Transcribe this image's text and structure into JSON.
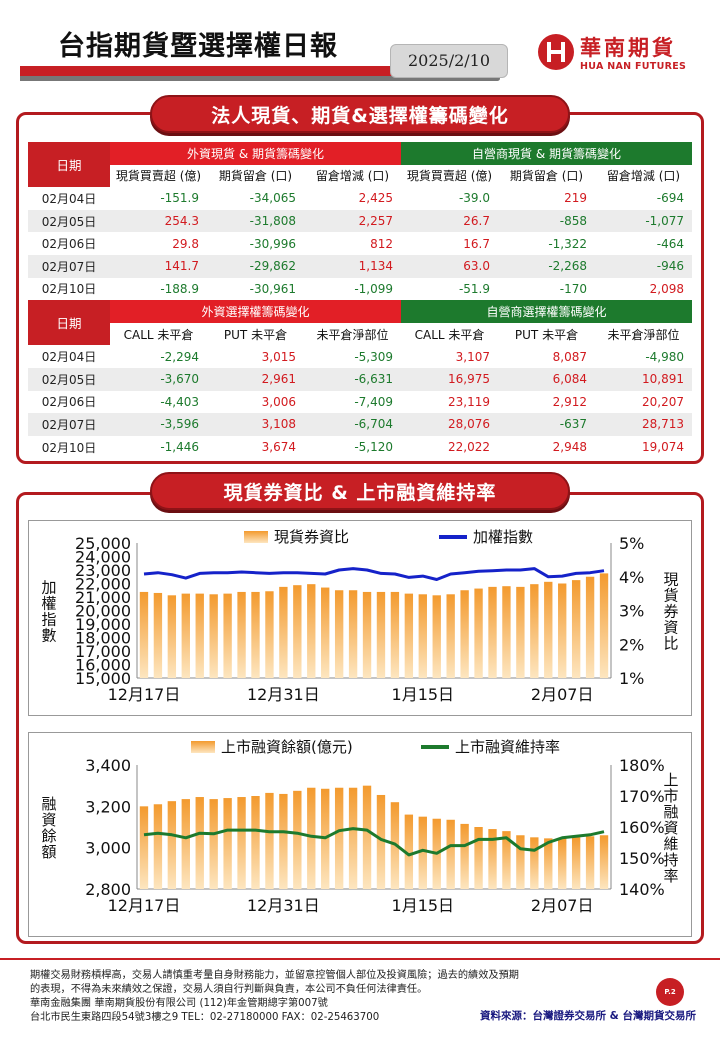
{
  "header": {
    "title": "台指期貨暨選擇權日報",
    "date": "2025/2/10",
    "logo_cn": "華南期貨",
    "logo_en": "HUA NAN FUTURES"
  },
  "section1": {
    "banner": "法人現貨、期貨&選擇權籌碼變化",
    "date_label": "日期",
    "group_foreign": "外資現貨 & 期貨籌碼變化",
    "group_dealer": "自營商現貨 & 期貨籌碼變化",
    "subheaders": [
      "現貨買賣超 (億)",
      "期貨留倉 (口)",
      "留倉增減 (口)",
      "現貨買賣超 (億)",
      "期貨留倉 (口)",
      "留倉增減 (口)"
    ],
    "rows": [
      {
        "date": "02月04日",
        "cells": [
          "-151.9",
          "-34,065",
          "2,425",
          "-39.0",
          "219",
          "-694"
        ]
      },
      {
        "date": "02月05日",
        "cells": [
          "254.3",
          "-31,808",
          "2,257",
          "26.7",
          "-858",
          "-1,077"
        ]
      },
      {
        "date": "02月06日",
        "cells": [
          "29.8",
          "-30,996",
          "812",
          "16.7",
          "-1,322",
          "-464"
        ]
      },
      {
        "date": "02月07日",
        "cells": [
          "141.7",
          "-29,862",
          "1,134",
          "63.0",
          "-2,268",
          "-946"
        ]
      },
      {
        "date": "02月10日",
        "cells": [
          "-188.9",
          "-30,961",
          "-1,099",
          "-51.9",
          "-170",
          "2,098"
        ]
      }
    ]
  },
  "section2": {
    "date_label": "日期",
    "group_foreign": "外資選擇權籌碼變化",
    "group_dealer": "自營商選擇權籌碼變化",
    "subheaders": [
      "CALL 未平倉",
      "PUT  未平倉",
      "未平倉淨部位",
      "CALL 未平倉",
      "PUT  未平倉",
      "未平倉淨部位"
    ],
    "rows": [
      {
        "date": "02月04日",
        "cells": [
          "-2,294",
          "3,015",
          "-5,309",
          "3,107",
          "8,087",
          "-4,980"
        ]
      },
      {
        "date": "02月05日",
        "cells": [
          "-3,670",
          "2,961",
          "-6,631",
          "16,975",
          "6,084",
          "10,891"
        ]
      },
      {
        "date": "02月06日",
        "cells": [
          "-4,403",
          "3,006",
          "-7,409",
          "23,119",
          "2,912",
          "20,207"
        ]
      },
      {
        "date": "02月07日",
        "cells": [
          "-3,596",
          "3,108",
          "-6,704",
          "28,076",
          "-637",
          "28,713"
        ]
      },
      {
        "date": "02月10日",
        "cells": [
          "-1,446",
          "3,674",
          "-5,120",
          "22,022",
          "2,948",
          "19,074"
        ]
      }
    ]
  },
  "section3": {
    "banner": "現貨券資比 & 上市融資維持率"
  },
  "chart_data": [
    {
      "type": "bar",
      "title": "",
      "xlabel": "",
      "ylabel": "加權指數",
      "y2label": "現貨券資比",
      "ylim": [
        15000,
        25000
      ],
      "y2lim": [
        1,
        5
      ],
      "yticks": [
        "25,000",
        "24,000",
        "23,000",
        "22,000",
        "21,000",
        "20,000",
        "19,000",
        "18,000",
        "17,000",
        "16,000",
        "15,000"
      ],
      "y2ticks": [
        "5%",
        "4%",
        "3%",
        "2%",
        "1%"
      ],
      "xticks": [
        "12月17日",
        "12月31日",
        "1月15日",
        "2月07日"
      ],
      "xtick_index": [
        0,
        10,
        20,
        30
      ],
      "grid": false,
      "legend_position": "top",
      "series": [
        {
          "name": "現貨券資比",
          "kind": "bar",
          "axis": "right",
          "color": "#f5a53d",
          "values": [
            3.55,
            3.52,
            3.45,
            3.5,
            3.5,
            3.48,
            3.5,
            3.55,
            3.55,
            3.57,
            3.7,
            3.75,
            3.78,
            3.68,
            3.6,
            3.6,
            3.55,
            3.55,
            3.55,
            3.5,
            3.48,
            3.45,
            3.48,
            3.6,
            3.65,
            3.7,
            3.72,
            3.7,
            3.78,
            3.85,
            3.8,
            3.9,
            4.0,
            4.1
          ]
        },
        {
          "name": "加權指數",
          "kind": "line",
          "axis": "left",
          "color": "#1522c9",
          "values": [
            22700,
            22800,
            22650,
            22400,
            22750,
            22800,
            22800,
            22850,
            22800,
            22750,
            22800,
            22800,
            22750,
            22700,
            23000,
            23100,
            23000,
            22750,
            22700,
            22450,
            22550,
            22300,
            22700,
            22800,
            22900,
            22950,
            23000,
            23000,
            23100,
            22500,
            22550,
            22750,
            22800,
            22950
          ]
        }
      ]
    },
    {
      "type": "bar",
      "title": "",
      "xlabel": "",
      "ylabel": "融資餘額",
      "y2label": "上市融資維持率",
      "ylim": [
        2800,
        3400
      ],
      "y2lim": [
        140,
        180
      ],
      "yticks": [
        "3,400",
        "3,200",
        "3,000",
        "2,800"
      ],
      "y2ticks": [
        "180%",
        "170%",
        "160%",
        "150%",
        "140%"
      ],
      "xticks": [
        "12月17日",
        "12月31日",
        "1月15日",
        "2月07日"
      ],
      "xtick_index": [
        0,
        10,
        20,
        30
      ],
      "grid": false,
      "legend_position": "top",
      "series": [
        {
          "name": "上市融資餘額(億元)",
          "kind": "bar",
          "axis": "left",
          "color": "#f5a53d",
          "values": [
            3200,
            3210,
            3225,
            3235,
            3245,
            3235,
            3240,
            3245,
            3250,
            3265,
            3260,
            3275,
            3290,
            3285,
            3290,
            3290,
            3300,
            3255,
            3220,
            3160,
            3150,
            3140,
            3135,
            3115,
            3100,
            3090,
            3080,
            3060,
            3050,
            3045,
            3045,
            3050,
            3055,
            3060
          ]
        },
        {
          "name": "上市融資維持率",
          "kind": "line",
          "axis": "right",
          "color": "#1d7a2d",
          "values": [
            157.5,
            158.0,
            157.5,
            156.5,
            158.0,
            157.8,
            159.0,
            159.0,
            159.0,
            158.5,
            158.5,
            158.0,
            157.0,
            156.5,
            158.8,
            159.5,
            159.0,
            156.0,
            154.5,
            151.0,
            152.5,
            151.5,
            154.0,
            154.0,
            156.0,
            156.0,
            156.5,
            153.0,
            152.5,
            155.0,
            156.5,
            157.0,
            157.5,
            158.5
          ]
        }
      ]
    }
  ],
  "footer": {
    "line1": "期權交易財務槓桿高，交易人請慎重考量自身財務能力，並留意控管個人部位及投資風險；過去的績效及預期",
    "line2": "的表現，不得為未來績效之保證，交易人須自行判斷與負責，本公司不負任何法律責任。",
    "line3": "華南金融集團 華南期貨股份有限公司 (112)年金管期總字第007號",
    "line4": "台北市民生東路四段54號3樓之9  TEL：02-27180000   FAX：02-25463700",
    "page": "P.2",
    "source": "資料來源：台灣證券交易所 & 台灣期貨交易所"
  }
}
